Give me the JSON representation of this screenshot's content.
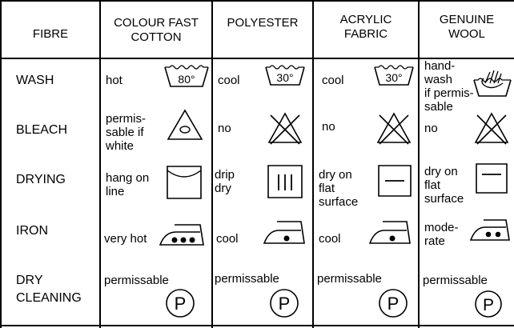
{
  "header": {
    "fibre": "FIBRE",
    "cotton": "COLOUR FAST\nCOTTON",
    "polyester": "POLYESTER",
    "acrylic": "ACRYLIC\nFABRIC",
    "wool": "GENUINE\nWOOL"
  },
  "rows": {
    "wash": "WASH",
    "bleach": "BLEACH",
    "drying": "DRYING",
    "iron": "IRON",
    "dry_cleaning": "DRY\nCLEANING"
  },
  "cells": {
    "cotton": {
      "wash": "hot",
      "bleach": "permis-\nsable if\nwhite",
      "drying": "hang on\nline",
      "iron": "very hot",
      "dry_cleaning": "permissable"
    },
    "polyester": {
      "wash": "cool",
      "bleach": "no",
      "drying": "drip\ndry",
      "iron": "cool",
      "dry_cleaning": "permissable"
    },
    "acrylic": {
      "wash": "cool",
      "bleach": "no",
      "drying": "dry on\nflat\nsurface",
      "iron": "cool",
      "dry_cleaning": "permissable"
    },
    "wool": {
      "wash": "hand-\nwash\nif permis-\nsable",
      "bleach": "no",
      "drying": "dry on\nflat\nsurface",
      "iron": "mode-\nrate",
      "dry_cleaning": "permissable"
    }
  },
  "symbols": {
    "cotton_temp": "80°",
    "polyester_temp": "30°",
    "acrylic_temp": "30°",
    "dry_clean_letter": "P"
  }
}
